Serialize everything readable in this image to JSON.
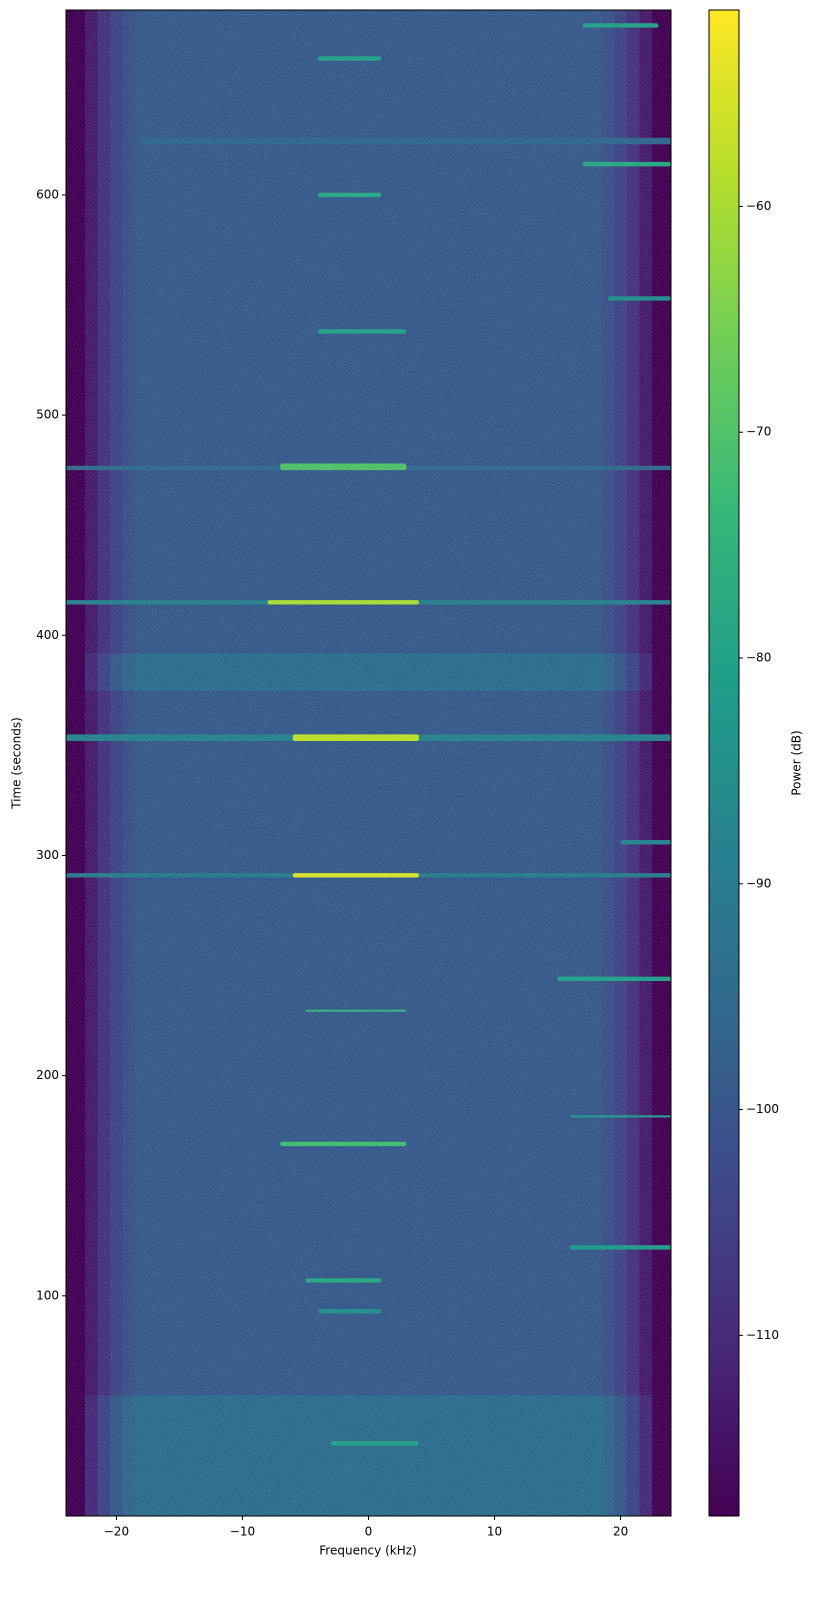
{
  "chart_data": {
    "type": "spectrogram",
    "x_label": "Frequency (kHz)",
    "y_label": "Time (seconds)",
    "colorbar_label": "Power (dB)",
    "xlim": [
      -24,
      24
    ],
    "ylim": [
      0,
      684
    ],
    "clim": [
      -118,
      -51.3
    ],
    "xticks": [
      {
        "value": -20,
        "label": "−20"
      },
      {
        "value": -10,
        "label": "−10"
      },
      0,
      10,
      20
    ],
    "yticks": [
      100,
      200,
      300,
      400,
      500,
      600
    ],
    "cticks": [
      {
        "value": -60,
        "label": "−60"
      },
      {
        "value": -70,
        "label": "−70"
      },
      {
        "value": -80,
        "label": "−80"
      },
      {
        "value": -90,
        "label": "−90"
      },
      {
        "value": -100,
        "label": "−100"
      },
      {
        "value": -110,
        "label": "−110"
      }
    ],
    "colormap": [
      "#440154",
      "#482878",
      "#3e4989",
      "#31688e",
      "#26828e",
      "#1f9e89",
      "#35b779",
      "#6ece58",
      "#b5de2b",
      "#fde725"
    ],
    "columns": [
      -24,
      -22.5,
      -21.5,
      -20.5,
      -19.5,
      -18.5,
      18.5,
      19.5,
      20.5,
      21.5,
      22.5,
      24
    ],
    "segments": [
      {
        "t0": 0,
        "t1": 55,
        "power": [
          -118,
          -110,
          -104,
          -99,
          -96,
          -94,
          -96,
          -99,
          -104,
          -110,
          -118
        ]
      },
      {
        "t0": 55,
        "t1": 375,
        "power": [
          -118,
          -113,
          -108,
          -104,
          -101,
          -99,
          -101,
          -104,
          -108,
          -113,
          -118
        ]
      },
      {
        "t0": 375,
        "t1": 392,
        "power": [
          -118,
          -110,
          -104,
          -99,
          -96,
          -94,
          -96,
          -99,
          -104,
          -110,
          -118
        ]
      },
      {
        "t0": 392,
        "t1": 684,
        "power": [
          -118,
          -113,
          -108,
          -104,
          -101,
          -99,
          -101,
          -104,
          -108,
          -113,
          -118
        ]
      }
    ],
    "bursts": [
      {
        "t0": 676,
        "t1": 678,
        "f0": 17,
        "f1": 23,
        "power": -80
      },
      {
        "t0": 661,
        "t1": 663,
        "f0": -4,
        "f1": 1,
        "power": -80
      },
      {
        "t0": 623,
        "t1": 626,
        "f0": -18,
        "f1": 24,
        "power": -96
      },
      {
        "t0": 613,
        "t1": 615,
        "f0": 17,
        "f1": 24,
        "power": -78
      },
      {
        "t0": 599,
        "t1": 601,
        "f0": -4,
        "f1": 1,
        "power": -78
      },
      {
        "t0": 552,
        "t1": 554,
        "f0": 19,
        "f1": 24,
        "power": -85
      },
      {
        "t0": 537,
        "t1": 539,
        "f0": -4,
        "f1": 3,
        "power": -80
      },
      {
        "t0": 475,
        "t1": 477,
        "f0": -24,
        "f1": 24,
        "power": -95
      },
      {
        "t0": 475,
        "t1": 478,
        "f0": -7,
        "f1": 3,
        "power": -70
      },
      {
        "t0": 414,
        "t1": 416,
        "f0": -24,
        "f1": 24,
        "power": -88
      },
      {
        "t0": 414,
        "t1": 416,
        "f0": -8,
        "f1": 4,
        "power": -60
      },
      {
        "t0": 352,
        "t1": 355,
        "f0": -24,
        "f1": 24,
        "power": -88
      },
      {
        "t0": 352,
        "t1": 355,
        "f0": -6,
        "f1": 4,
        "power": -58
      },
      {
        "t0": 305,
        "t1": 307,
        "f0": 20,
        "f1": 24,
        "power": -88
      },
      {
        "t0": 290,
        "t1": 292,
        "f0": -24,
        "f1": 24,
        "power": -90
      },
      {
        "t0": 290,
        "t1": 292,
        "f0": -6,
        "f1": 4,
        "power": -55
      },
      {
        "t0": 243,
        "t1": 245,
        "f0": 15,
        "f1": 24,
        "power": -80
      },
      {
        "t0": 229,
        "t1": 230,
        "f0": -5,
        "f1": 3,
        "power": -75
      },
      {
        "t0": 181,
        "t1": 182,
        "f0": 16,
        "f1": 24,
        "power": -82
      },
      {
        "t0": 168,
        "t1": 170,
        "f0": -7,
        "f1": 3,
        "power": -72
      },
      {
        "t0": 121,
        "t1": 123,
        "f0": 16,
        "f1": 24,
        "power": -82
      },
      {
        "t0": 106,
        "t1": 108,
        "f0": -5,
        "f1": 1,
        "power": -78
      },
      {
        "t0": 92,
        "t1": 94,
        "f0": -4,
        "f1": 1,
        "power": -85
      },
      {
        "t0": 32,
        "t1": 34,
        "f0": -3,
        "f1": 4,
        "power": -80
      }
    ]
  }
}
